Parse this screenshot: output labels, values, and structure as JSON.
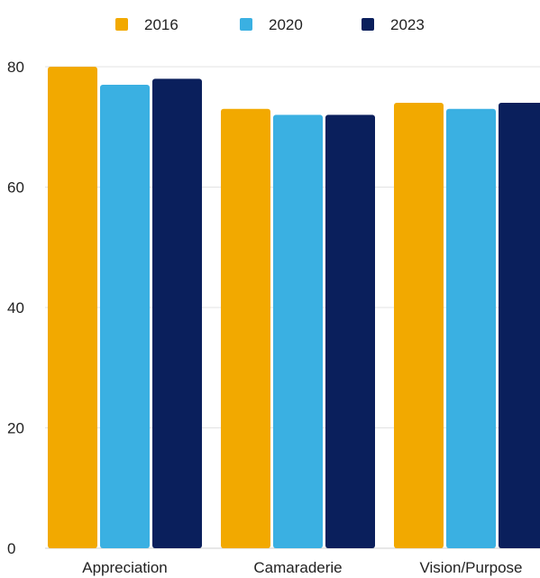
{
  "chart_data": {
    "type": "bar",
    "categories": [
      "Appreciation",
      "Camaraderie",
      "Vision/Purpose"
    ],
    "series": [
      {
        "name": "2016",
        "color": "#f2a900",
        "values": [
          80,
          73,
          74
        ]
      },
      {
        "name": "2020",
        "color": "#3ab0e2",
        "values": [
          77,
          72,
          73
        ]
      },
      {
        "name": "2023",
        "color": "#0a1f5c",
        "values": [
          78,
          72,
          74
        ]
      }
    ],
    "y_ticks": [
      0,
      20,
      40,
      60,
      80
    ],
    "ylim": [
      0,
      80
    ],
    "grid": true,
    "legend_position": "top-center",
    "xlabel": "",
    "ylabel": ""
  }
}
